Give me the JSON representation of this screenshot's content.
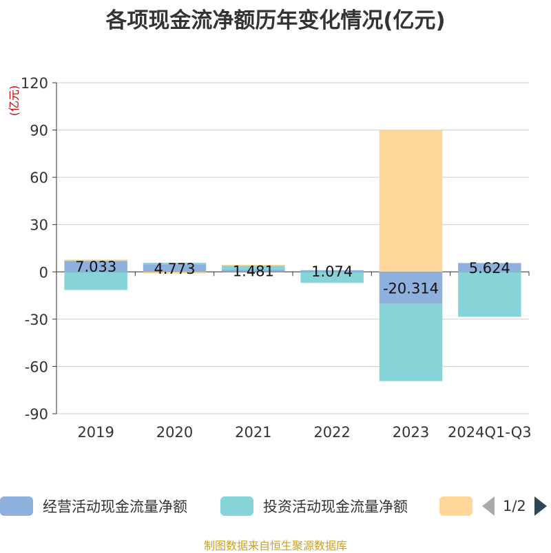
{
  "chart_data": {
    "type": "bar",
    "stacked": true,
    "title": "各项现金流净额历年变化情况(亿元)",
    "ylabel": "(亿元)",
    "categories": [
      "2019",
      "2020",
      "2021",
      "2022",
      "2023",
      "2024Q1-Q3"
    ],
    "ylim": [
      -90,
      120
    ],
    "yticks": [
      120,
      90,
      60,
      30,
      0,
      -30,
      -60,
      -90
    ],
    "grid": true,
    "series": [
      {
        "name": "经营活动现金流量净额",
        "color": "#8eb0dd",
        "values": [
          7.033,
          4.773,
          1.481,
          1.074,
          -20.314,
          5.624
        ],
        "labels": [
          "7.033",
          "4.773",
          "1.481",
          "1.074",
          "-20.314",
          "5.624"
        ]
      },
      {
        "name": "投资活动现金流量净额",
        "color": "#86d4d7",
        "values": [
          -11.5,
          1.0,
          2.5,
          -7.0,
          -49.0,
          -28.5
        ]
      },
      {
        "name": "",
        "color": "#fdd799",
        "values": [
          0.8,
          -1.0,
          0.5,
          0.0,
          90.0,
          0.0
        ]
      }
    ],
    "legend": {
      "position": "bottom",
      "page": "1/2"
    }
  },
  "source": "制图数据来自恒生聚源数据库"
}
